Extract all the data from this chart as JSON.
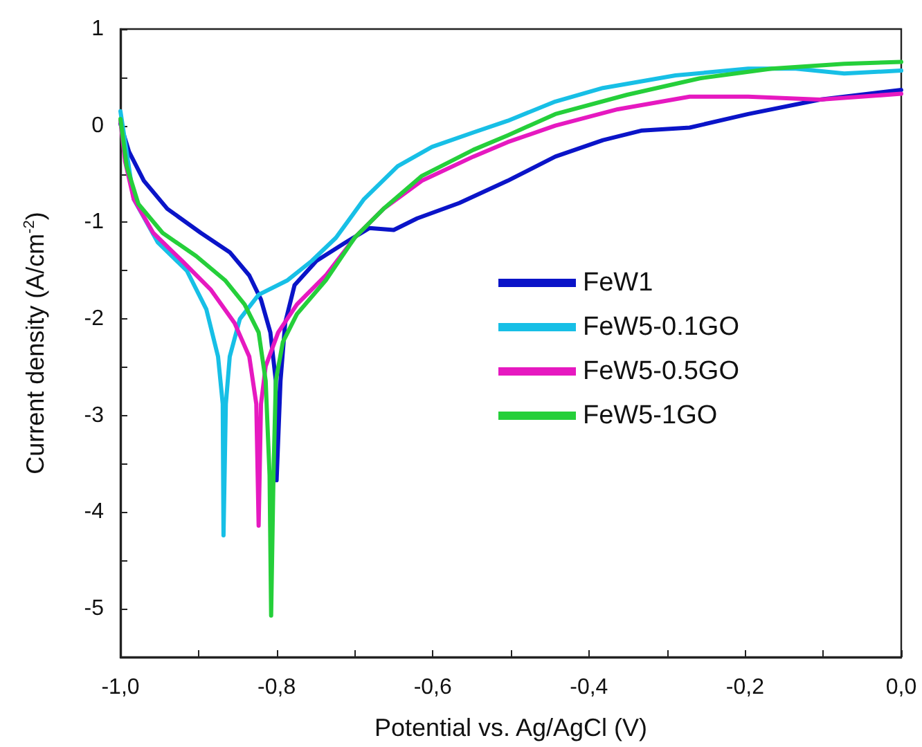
{
  "chart_data": {
    "type": "line",
    "xlabel": "Potential vs. Ag/AgCl (V)",
    "ylabel": "Current density (A/cm$^{-2}$)",
    "xlim": [
      -1.0,
      0.0
    ],
    "ylim": [
      -5.5,
      1
    ],
    "xticks": [
      {
        "value": -1.0,
        "label": "-1,0"
      },
      {
        "value": -0.9,
        "label": null
      },
      {
        "value": -0.8,
        "label": "-0,8"
      },
      {
        "value": -0.7,
        "label": null
      },
      {
        "value": -0.6,
        "label": "-0,6"
      },
      {
        "value": -0.5,
        "label": null
      },
      {
        "value": -0.4,
        "label": "-0,4"
      },
      {
        "value": -0.3,
        "label": null
      },
      {
        "value": -0.2,
        "label": "-0,2"
      },
      {
        "value": -0.1,
        "label": null
      },
      {
        "value": 0.0,
        "label": "0,0"
      }
    ],
    "yticks": [
      {
        "value": -5.5,
        "label": null
      },
      -5,
      {
        "value": -4.5,
        "label": null
      },
      -4,
      {
        "value": -3.5,
        "label": null
      },
      -3,
      {
        "value": -2.5,
        "label": null
      },
      -2,
      {
        "value": -1.5,
        "label": null
      },
      -1,
      {
        "value": -0.5,
        "label": null
      },
      0,
      {
        "value": 0.5,
        "label": null
      },
      1
    ],
    "grid": false,
    "legend": "right",
    "marker": "none",
    "line_style": "solid",
    "series": [
      {
        "name": "FeW1",
        "color": "#0a14c8",
        "x": [
          -1.0,
          -0.989,
          -0.97,
          -0.94,
          -0.897,
          -0.86,
          -0.835,
          -0.82,
          -0.808,
          -0.801,
          -0.8,
          -0.795,
          -0.789,
          -0.777,
          -0.749,
          -0.712,
          -0.681,
          -0.65,
          -0.62,
          -0.566,
          -0.504,
          -0.443,
          -0.382,
          -0.332,
          -0.271,
          -0.196,
          -0.104,
          0.0
        ],
        "values": [
          0.02,
          -0.27,
          -0.57,
          -0.86,
          -1.11,
          -1.31,
          -1.55,
          -1.8,
          -2.14,
          -2.64,
          -3.67,
          -2.64,
          -2.04,
          -1.65,
          -1.4,
          -1.21,
          -1.06,
          -1.08,
          -0.96,
          -0.8,
          -0.57,
          -0.32,
          -0.15,
          -0.05,
          -0.02,
          0.12,
          0.27,
          0.37
        ]
      },
      {
        "name": "FeW5-0.1GO",
        "color": "#17bfe6",
        "x": [
          -1.0,
          -0.994,
          -0.983,
          -0.952,
          -0.915,
          -0.89,
          -0.875,
          -0.869,
          -0.868,
          -0.865,
          -0.86,
          -0.847,
          -0.823,
          -0.786,
          -0.755,
          -0.724,
          -0.688,
          -0.645,
          -0.601,
          -0.548,
          -0.504,
          -0.443,
          -0.382,
          -0.289,
          -0.196,
          -0.135,
          -0.073,
          0.0
        ],
        "values": [
          0.15,
          -0.17,
          -0.76,
          -1.21,
          -1.5,
          -1.9,
          -2.39,
          -2.88,
          -4.24,
          -2.88,
          -2.39,
          -2.0,
          -1.75,
          -1.6,
          -1.4,
          -1.16,
          -0.76,
          -0.42,
          -0.22,
          -0.07,
          0.05,
          0.25,
          0.39,
          0.52,
          0.59,
          0.59,
          0.54,
          0.57
        ]
      },
      {
        "name": "FeW5-0.5GO",
        "color": "#e619c0",
        "x": [
          -1.0,
          -0.994,
          -0.983,
          -0.958,
          -0.921,
          -0.884,
          -0.854,
          -0.835,
          -0.826,
          -0.823,
          -0.82,
          -0.814,
          -0.798,
          -0.774,
          -0.737,
          -0.7,
          -0.663,
          -0.614,
          -0.548,
          -0.504,
          -0.443,
          -0.363,
          -0.271,
          -0.196,
          -0.104,
          0.0
        ],
        "values": [
          0.05,
          -0.37,
          -0.76,
          -1.11,
          -1.4,
          -1.7,
          -2.04,
          -2.39,
          -2.88,
          -4.14,
          -2.88,
          -2.49,
          -2.14,
          -1.85,
          -1.55,
          -1.16,
          -0.86,
          -0.57,
          -0.32,
          -0.17,
          0.0,
          0.17,
          0.3,
          0.3,
          0.27,
          0.33
        ]
      },
      {
        "name": "FeW5-1GO",
        "color": "#25cf3a",
        "x": [
          -1.0,
          -0.992,
          -0.977,
          -0.946,
          -0.903,
          -0.866,
          -0.841,
          -0.823,
          -0.814,
          -0.809,
          -0.807,
          -0.804,
          -0.801,
          -0.792,
          -0.774,
          -0.737,
          -0.7,
          -0.663,
          -0.614,
          -0.548,
          -0.504,
          -0.443,
          -0.351,
          -0.258,
          -0.166,
          -0.073,
          0.0
        ],
        "values": [
          0.07,
          -0.42,
          -0.81,
          -1.11,
          -1.35,
          -1.6,
          -1.85,
          -2.14,
          -2.64,
          -3.62,
          -5.07,
          -3.62,
          -2.64,
          -2.24,
          -1.95,
          -1.6,
          -1.16,
          -0.86,
          -0.52,
          -0.25,
          -0.1,
          0.12,
          0.32,
          0.49,
          0.59,
          0.64,
          0.66
        ]
      }
    ]
  }
}
